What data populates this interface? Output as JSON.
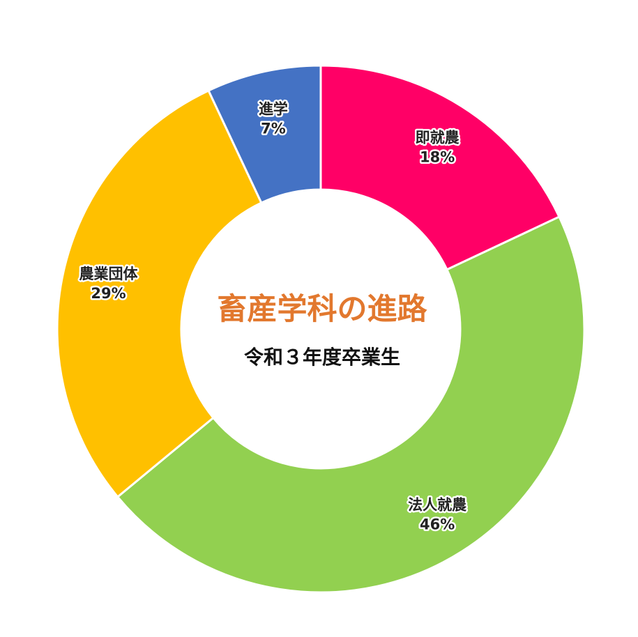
{
  "chart_data": {
    "type": "pie",
    "style": "donut",
    "title": "畜産学科の進路",
    "subtitle": "令和３年度卒業生",
    "title_color": "#e2782e",
    "slices": [
      {
        "label": "即就農",
        "value": 18,
        "percent_label": "18%",
        "color": "#ff0066"
      },
      {
        "label": "法人就農",
        "value": 46,
        "percent_label": "46%",
        "color": "#92d050"
      },
      {
        "label": "農業団体",
        "value": 29,
        "percent_label": "29%",
        "color": "#ffc000"
      },
      {
        "label": "進学",
        "value": 7,
        "percent_label": "7%",
        "color": "#4472c4"
      }
    ]
  }
}
